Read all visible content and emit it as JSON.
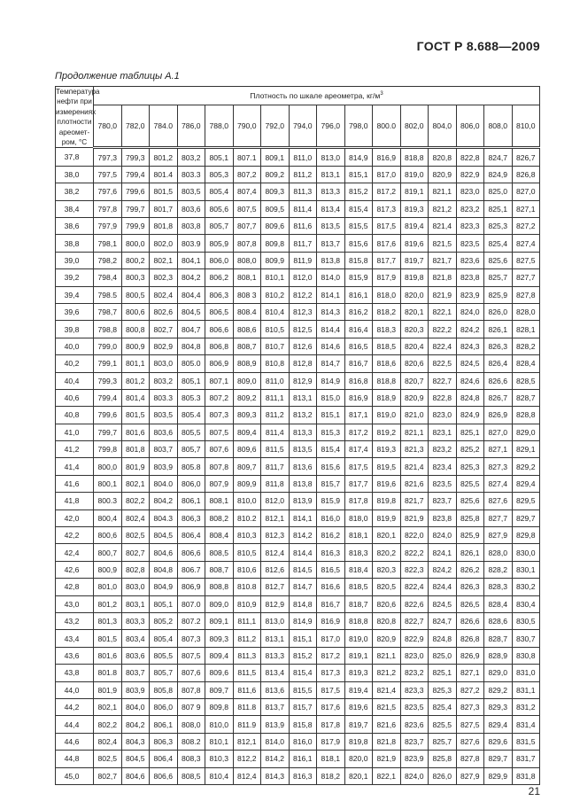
{
  "header": {
    "doc_id": "ГОСТ Р 8.688—2009"
  },
  "caption": "Продолжение таблицы А.1",
  "table": {
    "temp_header": "Температура нефти при измерениях плотности ареомет-ром, °С",
    "group_header": "Плотность по шкале ареометра, кг/м",
    "group_header_sup": "3",
    "columns": [
      "780,0",
      "782,0",
      "784.0",
      "786,0",
      "788,0",
      "790,0",
      "792,0",
      "794,0",
      "796,0",
      "798,0",
      "800.0",
      "802,0",
      "804,0",
      "806,0",
      "808,0",
      "810,0"
    ],
    "rows": [
      [
        "37,8",
        "797,3",
        "799,3",
        "801,2",
        "803,2",
        "805,1",
        "807.1",
        "809,1",
        "811,0",
        "813,0",
        "814,9",
        "816,9",
        "818,8",
        "820,8",
        "822,8",
        "824,7",
        "826,7"
      ],
      [
        "38,0",
        "797,5",
        "799,4",
        "801.4",
        "803.3",
        "805,3",
        "807,2",
        "809,2",
        "811,2",
        "813,1",
        "815,1",
        "817,0",
        "819,0",
        "820,9",
        "822,9",
        "824,9",
        "826,8"
      ],
      [
        "38,2",
        "797,6",
        "799,6",
        "801,5",
        "803,5",
        "805,4",
        "807,4",
        "809,3",
        "811,3",
        "813,3",
        "815,2",
        "817,2",
        "819,1",
        "821,1",
        "823,0",
        "825,0",
        "827,0"
      ],
      [
        "38,4",
        "797,8",
        "799,7",
        "801,7",
        "803,6",
        "805,6",
        "807,5",
        "809,5",
        "811,4",
        "813,4",
        "815,4",
        "817,3",
        "819,3",
        "821,2",
        "823,2",
        "825,1",
        "827,1"
      ],
      [
        "38,6",
        "797,9",
        "799,9",
        "801,8",
        "803,8",
        "805,7",
        "807,7",
        "809,6",
        "811,6",
        "813,5",
        "815,5",
        "817,5",
        "819,4",
        "821,4",
        "823,3",
        "825,3",
        "827,2"
      ],
      [
        "38,8",
        "798,1",
        "800,0",
        "802,0",
        "803.9",
        "805,9",
        "807,8",
        "809,8",
        "811,7",
        "813,7",
        "815,6",
        "817,6",
        "819,6",
        "821,5",
        "823,5",
        "825,4",
        "827,4"
      ],
      [
        "39,0",
        "798,2",
        "800,2",
        "802,1",
        "804,1",
        "806,0",
        "808,0",
        "809,9",
        "811,9",
        "813,8",
        "815,8",
        "817,7",
        "819,7",
        "821,7",
        "823,6",
        "825,6",
        "827,5"
      ],
      [
        "39,2",
        "798,4",
        "800,3",
        "802,3",
        "804,2",
        "806,2",
        "808,1",
        "810,1",
        "812,0",
        "814,0",
        "815,9",
        "817,9",
        "819,8",
        "821,8",
        "823,8",
        "825,7",
        "827,7"
      ],
      [
        "39,4",
        "798.5",
        "800,5",
        "802,4",
        "804,4",
        "806,3",
        "808 3",
        "810,2",
        "812,2",
        "814,1",
        "816,1",
        "818,0",
        "820,0",
        "821,9",
        "823,9",
        "825,9",
        "827,8"
      ],
      [
        "39,6",
        "798,7",
        "800,6",
        "802,6",
        "804,5",
        "806,5",
        "808.4",
        "810,4",
        "812,3",
        "814,3",
        "816,2",
        "818,2",
        "820,1",
        "822,1",
        "824,0",
        "826,0",
        "828,0"
      ],
      [
        "39,8",
        "798,8",
        "800,8",
        "802,7",
        "804,7",
        "806,6",
        "808,6",
        "810,5",
        "812,5",
        "814,4",
        "816,4",
        "818,3",
        "820,3",
        "822,2",
        "824,2",
        "826,1",
        "828,1"
      ],
      [
        "40,0",
        "799,0",
        "800,9",
        "802,9",
        "804,8",
        "806,8",
        "808,7",
        "810,7",
        "812,6",
        "814,6",
        "816,5",
        "818,5",
        "820,4",
        "822,4",
        "824,3",
        "826,3",
        "828,2"
      ],
      [
        "40,2",
        "799,1",
        "801,1",
        "803,0",
        "805.0",
        "806,9",
        "808,9",
        "810,8",
        "812,8",
        "814,7",
        "816,7",
        "818,6",
        "820,6",
        "822,5",
        "824,5",
        "826,4",
        "828,4"
      ],
      [
        "40,4",
        "799,3",
        "801,2",
        "803,2",
        "805,1",
        "807,1",
        "809,0",
        "811,0",
        "812,9",
        "814,9",
        "816,8",
        "818,8",
        "820,7",
        "822,7",
        "824,6",
        "826,6",
        "828,5"
      ],
      [
        "40,6",
        "799,4",
        "801,4",
        "803.3",
        "805.3",
        "807,2",
        "809,2",
        "811,1",
        "813,1",
        "815,0",
        "816,9",
        "818,9",
        "820,9",
        "822,8",
        "824,8",
        "826,7",
        "828,7"
      ],
      [
        "40,8",
        "799,6",
        "801,5",
        "803,5",
        "805.4",
        "807,3",
        "809,3",
        "811,2",
        "813,2",
        "815,1",
        "817,1",
        "819,0",
        "821,0",
        "823,0",
        "824,9",
        "826,9",
        "828,8"
      ],
      [
        "41,0",
        "799,7",
        "801,6",
        "803,6",
        "805,5",
        "807,5",
        "809,4",
        "811,4",
        "813,3",
        "815,3",
        "817,2",
        "819,2",
        "821,1",
        "823,1",
        "825,1",
        "827,0",
        "829,0"
      ],
      [
        "41,2",
        "799,8",
        "801,8",
        "803,7",
        "805,7",
        "807,6",
        "809,6",
        "811,5",
        "813,5",
        "815,4",
        "817,4",
        "819,3",
        "821,3",
        "823,2",
        "825,2",
        "827,1",
        "829,1"
      ],
      [
        "41,4",
        "800,0",
        "801,9",
        "803,9",
        "805.8",
        "807,8",
        "809,7",
        "811,7",
        "813,6",
        "815,6",
        "817,5",
        "819,5",
        "821,4",
        "823,4",
        "825,3",
        "827,3",
        "829,2"
      ],
      [
        "41,6",
        "800,1",
        "802,1",
        "804.0",
        "806,0",
        "807,9",
        "809,9",
        "811,8",
        "813,8",
        "815,7",
        "817,7",
        "819,6",
        "821,6",
        "823,5",
        "825,5",
        "827,4",
        "829,4"
      ],
      [
        "41,8",
        "800.3",
        "802,2",
        "804,2",
        "806,1",
        "808,1",
        "810,0",
        "812,0",
        "813,9",
        "815,9",
        "817,8",
        "819,8",
        "821,7",
        "823,7",
        "825,6",
        "827,6",
        "829,5"
      ],
      [
        "42,0",
        "800,4",
        "802,4",
        "804.3",
        "806,3",
        "808,2",
        "810.2",
        "812,1",
        "814,1",
        "816,0",
        "818,0",
        "819,9",
        "821,9",
        "823,8",
        "825,8",
        "827,7",
        "829,7"
      ],
      [
        "42,2",
        "800,6",
        "802,5",
        "804,5",
        "806,4",
        "808,4",
        "810,3",
        "812,3",
        "814,2",
        "816,2",
        "818,1",
        "820,1",
        "822,0",
        "824,0",
        "825,9",
        "827,9",
        "829,8"
      ],
      [
        "42,4",
        "800,7",
        "802,7",
        "804,6",
        "806,6",
        "808,5",
        "810,5",
        "812,4",
        "814,4",
        "816,3",
        "818,3",
        "820,2",
        "822,2",
        "824,1",
        "826,1",
        "828,0",
        "830,0"
      ],
      [
        "42,6",
        "800,9",
        "802,8",
        "804,8",
        "806.7",
        "808,7",
        "810,6",
        "812,6",
        "814,5",
        "816,5",
        "818,4",
        "820,3",
        "822,3",
        "824,2",
        "826,2",
        "828,2",
        "830,1"
      ],
      [
        "42,8",
        "801,0",
        "803,0",
        "804,9",
        "806,9",
        "808,8",
        "810.8",
        "812,7",
        "814,7",
        "816,6",
        "818,5",
        "820,5",
        "822,4",
        "824,4",
        "826,3",
        "828,3",
        "830,2"
      ],
      [
        "43,0",
        "801,2",
        "803,1",
        "805,1",
        "807.0",
        "809,0",
        "810,9",
        "812,9",
        "814,8",
        "816,7",
        "818,7",
        "820,6",
        "822,6",
        "824,5",
        "826,5",
        "828,4",
        "830,4"
      ],
      [
        "43,2",
        "801,3",
        "803,3",
        "805,2",
        "807.2",
        "809,1",
        "811,1",
        "813,0",
        "814,9",
        "816,9",
        "818,8",
        "820,8",
        "822,7",
        "824,7",
        "826,6",
        "828,6",
        "830,5"
      ],
      [
        "43,4",
        "801,5",
        "803,4",
        "805,4",
        "807,3",
        "809,3",
        "811,2",
        "813,1",
        "815,1",
        "817,0",
        "819,0",
        "820,9",
        "822,9",
        "824,8",
        "826,8",
        "828,7",
        "830,7"
      ],
      [
        "43,6",
        "801,6",
        "803,6",
        "805,5",
        "807,5",
        "809,4",
        "811,3",
        "813,3",
        "815,2",
        "817,2",
        "819,1",
        "821,1",
        "823,0",
        "825,0",
        "826,9",
        "828,9",
        "830,8"
      ],
      [
        "43,8",
        "801.8",
        "803,7",
        "805,7",
        "807,6",
        "809,6",
        "811,5",
        "813,4",
        "815,4",
        "817,3",
        "819,3",
        "821,2",
        "823,2",
        "825,1",
        "827,1",
        "829,0",
        "831,0"
      ],
      [
        "44,0",
        "801,9",
        "803,9",
        "805,8",
        "807,8",
        "809,7",
        "811,6",
        "813,6",
        "815,5",
        "817,5",
        "819,4",
        "821,4",
        "823,3",
        "825,3",
        "827,2",
        "829,2",
        "831,1"
      ],
      [
        "44,2",
        "802,1",
        "804,0",
        "806,0",
        "807 9",
        "809,8",
        "811.8",
        "813,7",
        "815,7",
        "817,6",
        "819,6",
        "821,5",
        "823,5",
        "825,4",
        "827,3",
        "829,3",
        "831,2"
      ],
      [
        "44,4",
        "802,2",
        "804,2",
        "806,1",
        "808,0",
        "810,0",
        "811.9",
        "813,9",
        "815,8",
        "817,8",
        "819,7",
        "821,6",
        "823,6",
        "825,5",
        "827,5",
        "829,4",
        "831,4"
      ],
      [
        "44,6",
        "802,4",
        "804,3",
        "806,3",
        "808.2",
        "810,1",
        "812,1",
        "814,0",
        "816,0",
        "817,9",
        "819,8",
        "821,8",
        "823,7",
        "825,7",
        "827,6",
        "829,6",
        "831,5"
      ],
      [
        "44,8",
        "802,5",
        "804,5",
        "806,4",
        "808,3",
        "810,3",
        "812,2",
        "814,2",
        "816,1",
        "818,1",
        "820,0",
        "821,9",
        "823,9",
        "825,8",
        "827,8",
        "829,7",
        "831,7"
      ],
      [
        "45,0",
        "802,7",
        "804,6",
        "806,6",
        "808,5",
        "810,4",
        "812,4",
        "814,3",
        "816,3",
        "818,2",
        "820,1",
        "822,1",
        "824,0",
        "826,0",
        "827,9",
        "829,9",
        "831,8"
      ]
    ]
  },
  "page_number": "21"
}
